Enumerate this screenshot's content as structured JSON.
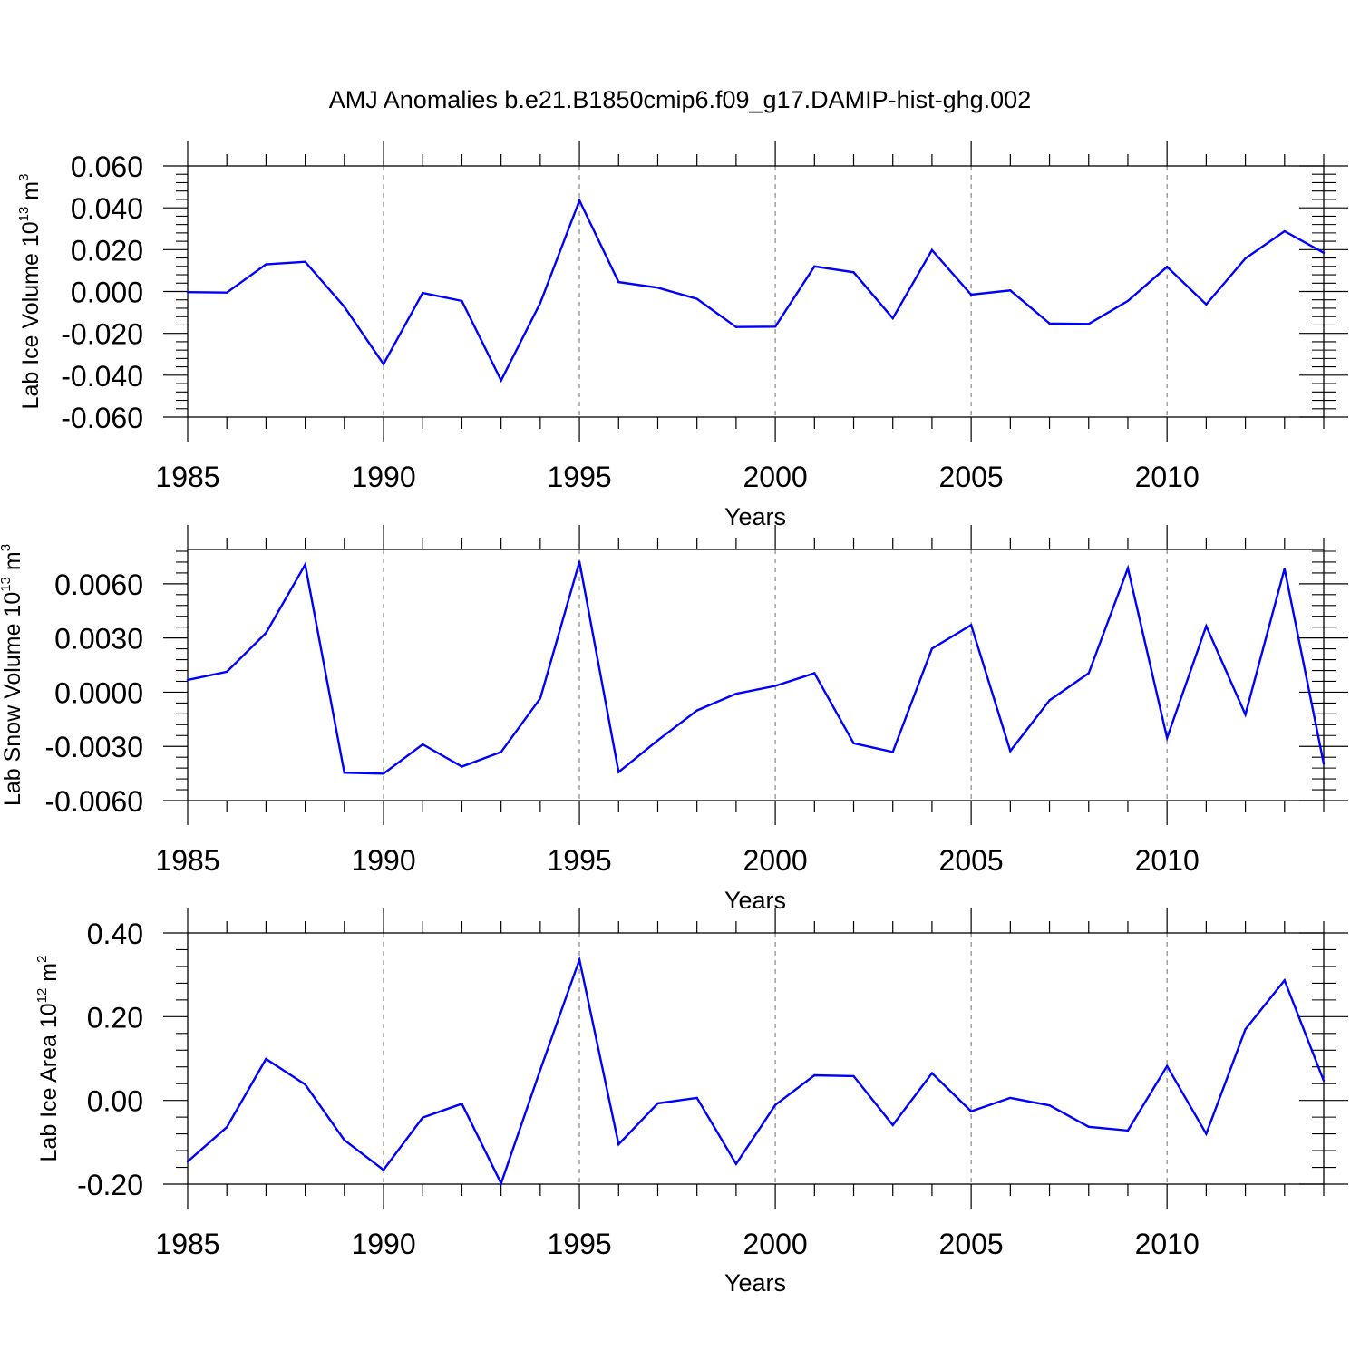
{
  "figure_title": "AMJ Anomalies b.e21.B1850cmip6.f09_g17.DAMIP-hist-ghg.002",
  "colors": {
    "line": "#0000ff",
    "axis": "#000000",
    "grid": "#888888",
    "background": "#ffffff"
  },
  "chart_data": [
    {
      "type": "line",
      "title": "AMJ Anomalies b.e21.B1850cmip6.f09_g17.DAMIP-hist-ghg.002",
      "ylabel_base": "Lab Ice Volume 10",
      "ylabel_exp": "13",
      "ylabel_unit": "m",
      "ylabel_unit_exp": "3",
      "xlabel": "Years",
      "xlim": [
        1985,
        2014
      ],
      "ylim": [
        -0.06,
        0.06
      ],
      "xticks": [
        "1985",
        "1990",
        "1995",
        "2000",
        "2005",
        "2010"
      ],
      "yticks": [
        "0.060",
        "0.040",
        "0.020",
        "0.000",
        "-0.020",
        "-0.040",
        "-0.060"
      ],
      "ytick_values": [
        0.06,
        0.04,
        0.02,
        0.0,
        -0.02,
        -0.04,
        -0.06
      ],
      "grid_years": [
        1990,
        1995,
        2000,
        2005,
        2010
      ],
      "x": [
        1985,
        1986,
        1987,
        1988,
        1989,
        1990,
        1991,
        1992,
        1993,
        1994,
        1995,
        1996,
        1997,
        1998,
        1999,
        2000,
        2001,
        2002,
        2003,
        2004,
        2005,
        2006,
        2007,
        2008,
        2009,
        2010,
        2011,
        2012,
        2013,
        2014
      ],
      "values": [
        -0.0003,
        -0.0005,
        0.013,
        0.0142,
        -0.0073,
        -0.0347,
        -0.0007,
        -0.0045,
        -0.0425,
        -0.0055,
        0.0435,
        0.0045,
        0.0018,
        -0.0035,
        -0.017,
        -0.0168,
        0.012,
        0.0092,
        -0.0128,
        0.0198,
        -0.0015,
        0.0005,
        -0.0153,
        -0.0155,
        -0.0045,
        0.0118,
        -0.0062,
        0.0158,
        0.0288,
        0.0185
      ]
    },
    {
      "type": "line",
      "ylabel_base": "Lab Snow Volume 10",
      "ylabel_exp": "13",
      "ylabel_unit": "m",
      "ylabel_unit_exp": "3",
      "xlabel": "Years",
      "xlim": [
        1985,
        2014
      ],
      "ylim": [
        -0.006,
        0.0079
      ],
      "xticks": [
        "1985",
        "1990",
        "1995",
        "2000",
        "2005",
        "2010"
      ],
      "yticks": [
        "0.0060",
        "0.0030",
        "0.0000",
        "-0.0030",
        "-0.0060"
      ],
      "ytick_values": [
        0.006,
        0.003,
        0.0,
        -0.003,
        -0.006
      ],
      "grid_years": [
        1990,
        1995,
        2000,
        2005,
        2010
      ],
      "x": [
        1985,
        1986,
        1987,
        1988,
        1989,
        1990,
        1991,
        1992,
        1993,
        1994,
        1995,
        1996,
        1997,
        1998,
        1999,
        2000,
        2001,
        2002,
        2003,
        2004,
        2005,
        2006,
        2007,
        2008,
        2009,
        2010,
        2011,
        2012,
        2013,
        2014
      ],
      "values": [
        0.00068,
        0.00113,
        0.00328,
        0.00706,
        -0.00446,
        -0.00451,
        -0.00289,
        -0.00412,
        -0.00331,
        -0.00034,
        0.00722,
        -0.00442,
        -0.00267,
        -0.00101,
        -9e-05,
        0.00035,
        0.00105,
        -0.00283,
        -0.00331,
        0.00241,
        0.00372,
        -0.00326,
        -0.00045,
        0.00105,
        0.00686,
        -0.00254,
        0.00366,
        -0.00124,
        0.00683,
        -0.00396
      ]
    },
    {
      "type": "line",
      "ylabel_base": "Lab Ice Area 10",
      "ylabel_exp": "12",
      "ylabel_unit": "m",
      "ylabel_unit_exp": "2",
      "xlabel": "Years",
      "xlim": [
        1985,
        2014
      ],
      "ylim": [
        -0.2,
        0.4
      ],
      "xticks": [
        "1985",
        "1990",
        "1995",
        "2000",
        "2005",
        "2010"
      ],
      "yticks": [
        "0.40",
        "0.20",
        "0.00",
        "-0.20"
      ],
      "ytick_values": [
        0.4,
        0.2,
        0.0,
        -0.2
      ],
      "grid_years": [
        1990,
        1995,
        2000,
        2005,
        2010
      ],
      "x": [
        1985,
        1986,
        1987,
        1988,
        1989,
        1990,
        1991,
        1992,
        1993,
        1994,
        1995,
        1996,
        1997,
        1998,
        1999,
        2000,
        2001,
        2002,
        2003,
        2004,
        2005,
        2006,
        2007,
        2008,
        2009,
        2010,
        2011,
        2012,
        2013,
        2014
      ],
      "values": [
        -0.146,
        -0.064,
        0.099,
        0.038,
        -0.095,
        -0.166,
        -0.041,
        -0.008,
        -0.198,
        0.073,
        0.336,
        -0.105,
        -0.007,
        0.006,
        -0.152,
        -0.011,
        0.06,
        0.058,
        -0.059,
        0.065,
        -0.026,
        0.006,
        -0.012,
        -0.063,
        -0.072,
        0.082,
        -0.08,
        0.17,
        0.287,
        0.047
      ]
    }
  ]
}
